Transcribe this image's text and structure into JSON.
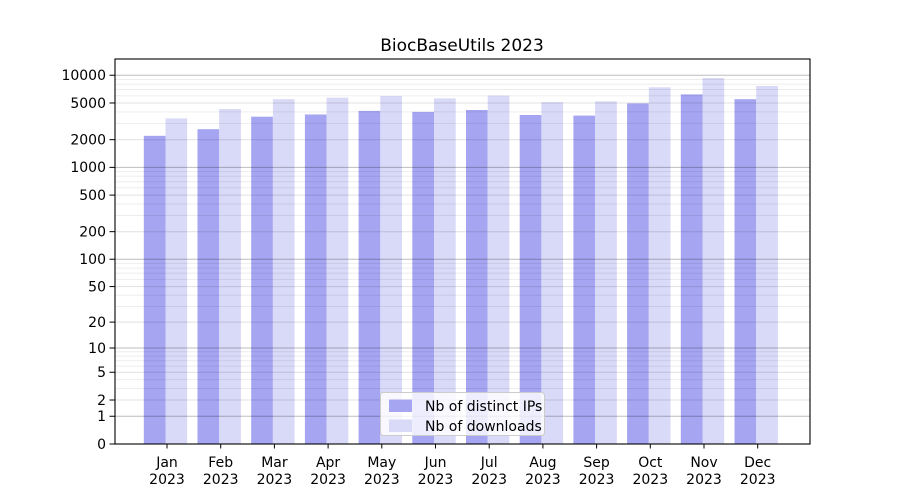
{
  "chart_data": {
    "type": "bar",
    "title": "BiocBaseUtils 2023",
    "x_labels": [
      {
        "month": "Jan",
        "year": "2023"
      },
      {
        "month": "Feb",
        "year": "2023"
      },
      {
        "month": "Mar",
        "year": "2023"
      },
      {
        "month": "Apr",
        "year": "2023"
      },
      {
        "month": "May",
        "year": "2023"
      },
      {
        "month": "Jun",
        "year": "2023"
      },
      {
        "month": "Jul",
        "year": "2023"
      },
      {
        "month": "Aug",
        "year": "2023"
      },
      {
        "month": "Sep",
        "year": "2023"
      },
      {
        "month": "Oct",
        "year": "2023"
      },
      {
        "month": "Nov",
        "year": "2023"
      },
      {
        "month": "Dec",
        "year": "2023"
      }
    ],
    "series": [
      {
        "name": "Nb of distinct IPs",
        "color": "#a5a5f2",
        "values": [
          2200,
          2600,
          3550,
          3750,
          4100,
          4000,
          4200,
          3700,
          3650,
          4950,
          6200,
          5500
        ]
      },
      {
        "name": "Nb of downloads",
        "color": "#d9d9f8",
        "values": [
          3400,
          4300,
          5500,
          5700,
          5950,
          5600,
          6000,
          5100,
          5200,
          7400,
          9300,
          7650
        ]
      }
    ],
    "y_ticks": [
      0,
      1,
      2,
      5,
      10,
      20,
      50,
      100,
      200,
      500,
      1000,
      2000,
      5000,
      10000
    ],
    "y_scale": "log10(1+v)",
    "ylim": [
      0,
      15000
    ],
    "grid": true,
    "legend_position": "inside-bottom-center"
  }
}
